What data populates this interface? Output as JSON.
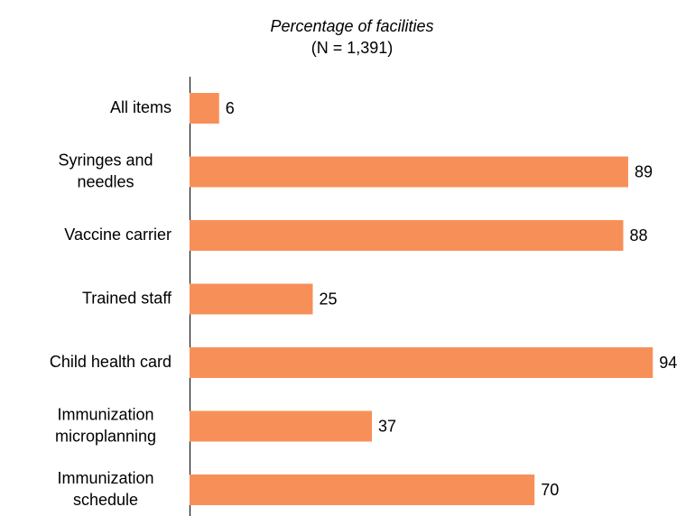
{
  "chart_data": {
    "type": "barh",
    "title": "Percentage of facilities",
    "subtitle": "(N = 1,391)",
    "categories": [
      "All items",
      "Syringes and needles",
      "Vaccine carrier",
      "Trained staff",
      "Child health card",
      "Immunization microplanning",
      "Immunization schedule"
    ],
    "values": [
      6,
      89,
      88,
      25,
      94,
      37,
      70
    ],
    "color": "#f79058",
    "xlim": [
      0,
      100
    ]
  }
}
